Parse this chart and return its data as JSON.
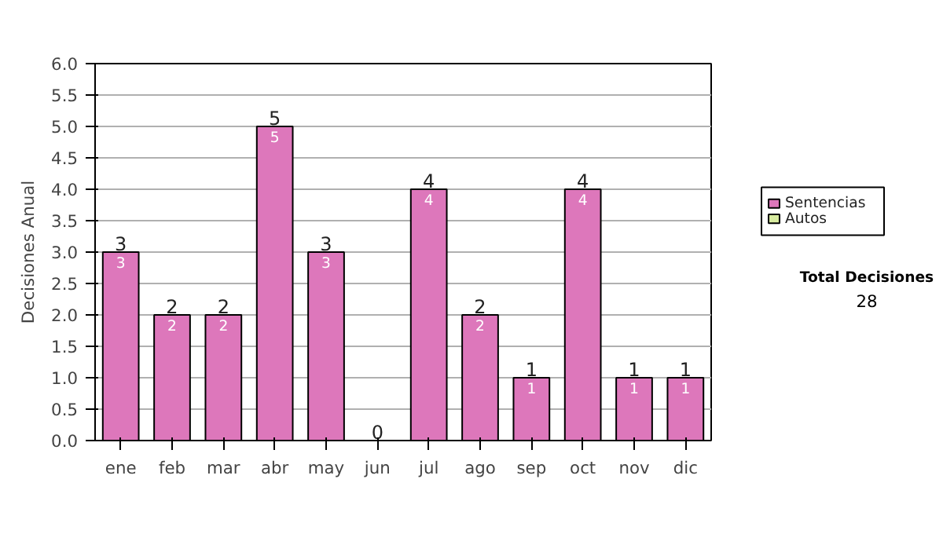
{
  "chart_data": {
    "type": "bar",
    "ylabel": "Decisiones Anual",
    "stacked": true,
    "categories": [
      "ene",
      "feb",
      "mar",
      "abr",
      "may",
      "jun",
      "jul",
      "ago",
      "sep",
      "oct",
      "nov",
      "dic"
    ],
    "series": [
      {
        "name": "Sentencias",
        "color": "#dd77bb",
        "values": [
          3,
          2,
          2,
          5,
          3,
          0,
          4,
          2,
          1,
          4,
          1,
          1
        ]
      },
      {
        "name": "Autos",
        "color": "#d8eca0",
        "values": [
          0,
          0,
          0,
          0,
          0,
          0,
          0,
          0,
          0,
          0,
          0,
          0
        ]
      }
    ],
    "value_labels": [
      "3",
      "2",
      "2",
      "5",
      "3",
      null,
      "4",
      "2",
      "1",
      "4",
      "1",
      "1"
    ],
    "totals": [
      "3",
      "2",
      "2",
      "5",
      "3",
      "0",
      "4",
      "2",
      "1",
      "4",
      "1",
      "1"
    ],
    "ylim": [
      0,
      6
    ],
    "yticks": [
      {
        "value": 0,
        "label": "0.0"
      },
      {
        "value": 0.5,
        "label": "0.5"
      },
      {
        "value": 1,
        "label": "1.0"
      },
      {
        "value": 1.5,
        "label": "1.5"
      },
      {
        "value": 2,
        "label": "2.0"
      },
      {
        "value": 2.5,
        "label": "2.5"
      },
      {
        "value": 3,
        "label": "3.0"
      },
      {
        "value": 3.5,
        "label": "3.5"
      },
      {
        "value": 4,
        "label": "4.0"
      },
      {
        "value": 4.5,
        "label": "4.5"
      },
      {
        "value": 5,
        "label": "5.0"
      },
      {
        "value": 5.5,
        "label": "5.5"
      },
      {
        "value": 6,
        "label": "6.0"
      }
    ],
    "grid": "y",
    "legend": "right",
    "annotations": [
      "Total Decisiones",
      "28"
    ]
  }
}
